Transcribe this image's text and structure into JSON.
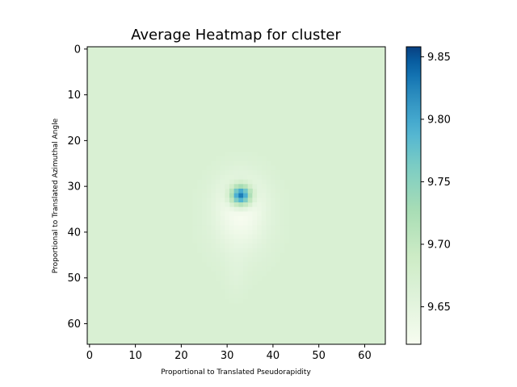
{
  "chart_data": {
    "type": "heatmap",
    "title": "Average Heatmap for cluster",
    "xlabel": "Proportional to Translated Pseudorapidity",
    "ylabel": "Proportional to Translated Azimuthal Angle",
    "x_ticks": [
      0,
      10,
      20,
      30,
      40,
      50,
      60
    ],
    "y_ticks": [
      0,
      10,
      20,
      30,
      40,
      50,
      60
    ],
    "grid_size": [
      65,
      65
    ],
    "x_range": [
      0,
      64
    ],
    "y_range": [
      0,
      64
    ],
    "y_axis_inverted": true,
    "background_value": 9.668,
    "peak": {
      "x": 33,
      "y": 32,
      "value": 9.855
    },
    "depressions": [
      {
        "x": 33,
        "y": 37,
        "value": 9.628
      },
      {
        "x": 32,
        "y": 49,
        "value": 9.66
      }
    ],
    "colorbar": {
      "colormap": "GnBu",
      "min": 9.62,
      "max": 9.858,
      "ticks": [
        "9.65",
        "9.70",
        "9.75",
        "9.80",
        "9.85"
      ],
      "tick_values": [
        9.65,
        9.7,
        9.75,
        9.8,
        9.85
      ],
      "placement": "right"
    }
  }
}
